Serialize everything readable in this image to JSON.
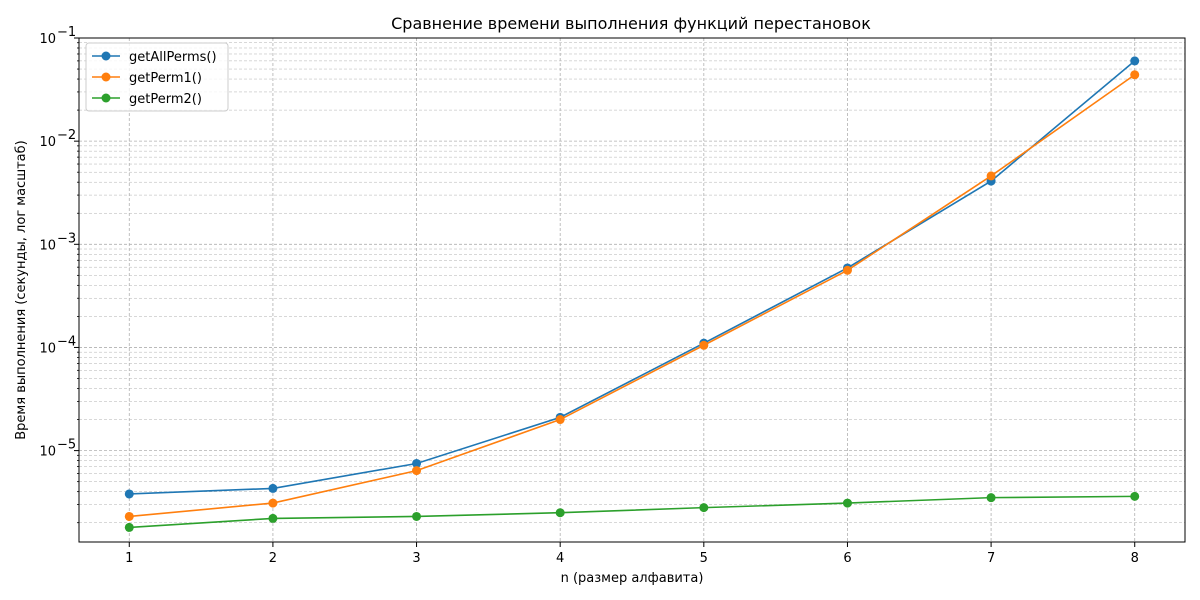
{
  "chart_data": {
    "type": "line",
    "title": "Сравнение времени выполнения функций перестановок",
    "xlabel": "n (размер алфавита)",
    "ylabel": "Время выполнения (секунды, лог масштаб)",
    "yscale": "log",
    "grid": true,
    "legend_position": "top-left",
    "x": [
      1,
      2,
      3,
      4,
      5,
      6,
      7,
      8
    ],
    "xlim": [
      0.65,
      8.35
    ],
    "ylim": [
      1.3e-06,
      0.1
    ],
    "x_tick_labels": [
      "1",
      "2",
      "3",
      "4",
      "5",
      "6",
      "7",
      "8"
    ],
    "y_ticks": [
      {
        "base": "10",
        "exp": "−5",
        "value": 1e-05
      },
      {
        "base": "10",
        "exp": "−4",
        "value": 0.0001
      },
      {
        "base": "10",
        "exp": "−3",
        "value": 0.001
      },
      {
        "base": "10",
        "exp": "−2",
        "value": 0.01
      },
      {
        "base": "10",
        "exp": "−1",
        "value": 0.1
      }
    ],
    "series": [
      {
        "name": "getAllPerms()",
        "color": "#1f77b4",
        "values": [
          3.8e-06,
          4.3e-06,
          7.5e-06,
          2.1e-05,
          0.00011,
          0.00059,
          0.0041,
          0.06
        ]
      },
      {
        "name": "getPerm1()",
        "color": "#ff7f0e",
        "values": [
          2.3e-06,
          3.1e-06,
          6.4e-06,
          2e-05,
          0.000105,
          0.00056,
          0.0046,
          0.044
        ]
      },
      {
        "name": "getPerm2()",
        "color": "#2ca02c",
        "values": [
          1.8e-06,
          2.2e-06,
          2.3e-06,
          2.5e-06,
          2.8e-06,
          3.1e-06,
          3.5e-06,
          3.6e-06
        ]
      }
    ]
  }
}
